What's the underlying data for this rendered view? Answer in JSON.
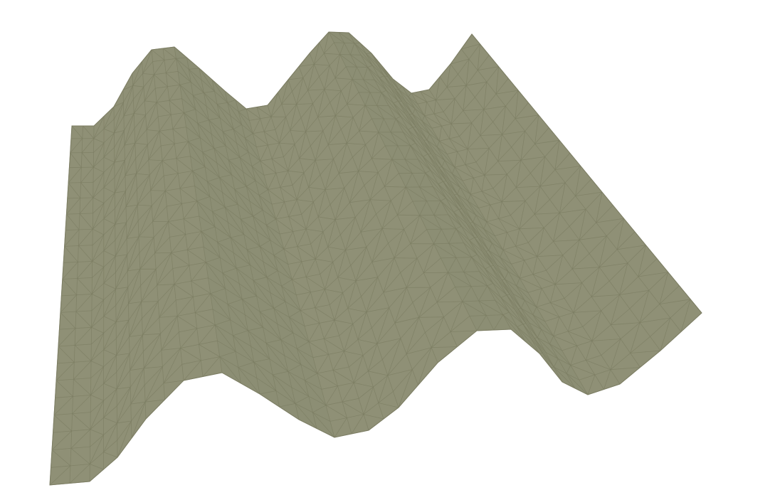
{
  "scene": {
    "background": "#ffffff",
    "surface_fill": "#8f9076",
    "surface_shade": "#8b8c72",
    "wire_color": "#7c7d63",
    "view": "3d-perspective",
    "render_style": "flat-shaded-wireframe",
    "surface_shape": "sinusoidal corrugated sheet",
    "visible_crests": 3
  }
}
